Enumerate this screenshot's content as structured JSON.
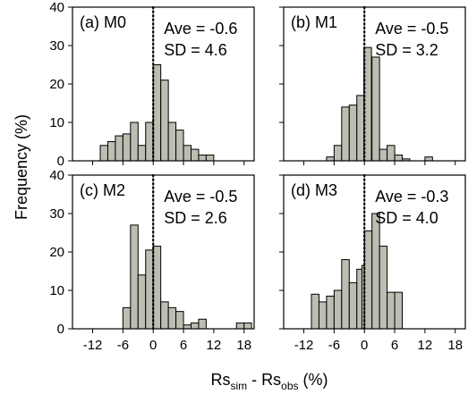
{
  "chart_data": {
    "type": "bar",
    "ylabel": "Frequency (%)",
    "xlabel": {
      "main": "Rs",
      "sub1": "sim",
      "mid": " - Rs",
      "sub2": "obs",
      "tail": " (%)"
    },
    "xlim": [
      -16,
      20
    ],
    "ylim": [
      0,
      40
    ],
    "xticks": [
      -12,
      -6,
      0,
      6,
      12,
      18
    ],
    "xtick_labels": [
      "-12",
      "-6",
      "0",
      "6",
      "12",
      "18"
    ],
    "yticks": [
      0,
      10,
      20,
      30,
      40
    ],
    "ytick_labels": [
      "0",
      "10",
      "20",
      "30",
      "40"
    ],
    "bin_width": 1.5,
    "bar_fill": "#bdbdb2",
    "bar_stroke": "#000000",
    "reference_line": {
      "x": 0,
      "style": "dotted"
    },
    "panels": [
      {
        "label": "(a) M0",
        "ave": "Ave = -0.6",
        "sd": "SD = 4.6",
        "bins": [
          {
            "x0": -10.5,
            "v": 4
          },
          {
            "x0": -9,
            "v": 5
          },
          {
            "x0": -7.5,
            "v": 6.5
          },
          {
            "x0": -6,
            "v": 7
          },
          {
            "x0": -4.5,
            "v": 10
          },
          {
            "x0": -3,
            "v": 4
          },
          {
            "x0": -1.5,
            "v": 10
          },
          {
            "x0": 0,
            "v": 25
          },
          {
            "x0": 1.5,
            "v": 21
          },
          {
            "x0": 3,
            "v": 10
          },
          {
            "x0": 4.5,
            "v": 8
          },
          {
            "x0": 6,
            "v": 4
          },
          {
            "x0": 7.5,
            "v": 3
          },
          {
            "x0": 9,
            "v": 1.5
          },
          {
            "x0": 10.5,
            "v": 1.5
          }
        ]
      },
      {
        "label": "(b) M1",
        "ave": "Ave = -0.5",
        "sd": "SD = 3.2",
        "bins": [
          {
            "x0": -7.5,
            "v": 1
          },
          {
            "x0": -6,
            "v": 4
          },
          {
            "x0": -4.5,
            "v": 14
          },
          {
            "x0": -3,
            "v": 14.5
          },
          {
            "x0": -1.5,
            "v": 17
          },
          {
            "x0": -0.1,
            "v": 29.5
          },
          {
            "x0": 1.5,
            "v": 27
          },
          {
            "x0": 3,
            "v": 3
          },
          {
            "x0": 4.5,
            "v": 4
          },
          {
            "x0": 6,
            "v": 1.5
          },
          {
            "x0": 7.5,
            "v": 0.5
          },
          {
            "x0": 12,
            "v": 1
          }
        ]
      },
      {
        "label": "(c) M2",
        "ave": "Ave = -0.5",
        "sd": "SD = 2.6",
        "bins": [
          {
            "x0": -6,
            "v": 5.5
          },
          {
            "x0": -4.5,
            "v": 27
          },
          {
            "x0": -3,
            "v": 14
          },
          {
            "x0": -1.5,
            "v": 20.5
          },
          {
            "x0": 0,
            "v": 21.5
          },
          {
            "x0": 1.5,
            "v": 7
          },
          {
            "x0": 3,
            "v": 5.5
          },
          {
            "x0": 4.5,
            "v": 4.5
          },
          {
            "x0": 6,
            "v": 1
          },
          {
            "x0": 7.5,
            "v": 1.5
          },
          {
            "x0": 9,
            "v": 2.5
          },
          {
            "x0": 16.5,
            "v": 1.5
          },
          {
            "x0": 18,
            "v": 1.5
          }
        ]
      },
      {
        "label": "(d) M3",
        "ave": "Ave = -0.3",
        "sd": "SD = 4.0",
        "bins": [
          {
            "x0": -10.5,
            "v": 9
          },
          {
            "x0": -9,
            "v": 7
          },
          {
            "x0": -7.5,
            "v": 8.5
          },
          {
            "x0": -6,
            "v": 10
          },
          {
            "x0": -4.5,
            "v": 18
          },
          {
            "x0": -3,
            "v": 12
          },
          {
            "x0": -1.5,
            "v": 15.5
          },
          {
            "x0": -0.5,
            "v": 16.5
          },
          {
            "x0": 0,
            "v": 25.5
          },
          {
            "x0": 1.5,
            "v": 30
          },
          {
            "x0": 3,
            "v": 21.5
          },
          {
            "x0": 4.5,
            "v": 9.5
          },
          {
            "x0": 6,
            "v": 9.5
          }
        ]
      }
    ]
  }
}
